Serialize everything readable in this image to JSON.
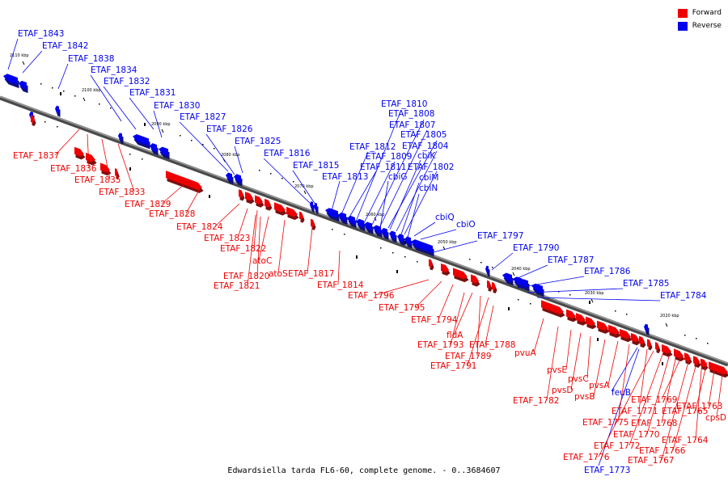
{
  "colors": {
    "forward": "#ee0000",
    "reverse": "#0000ee",
    "axis": "#6f6f6f",
    "shadow": "#7a1010",
    "shadowRev": "#10107a"
  },
  "legend": [
    {
      "key": "forward",
      "label": "Forward"
    },
    {
      "key": "reverse",
      "label": "Reverse"
    }
  ],
  "caption": "Edwardsiella tarda FL6-60, complete genome. - 0..3684607",
  "ticks": [
    "2110 kbp",
    "2100 kbp",
    "2090 kbp",
    "2080 kbp",
    "2070 kbp",
    "2060 kbp",
    "2050 kbp",
    "2040 kbp",
    "2030 kbp",
    "2020 kbp"
  ],
  "reverse_labels": [
    "ETAF_1843",
    "ETAF_1842",
    "ETAF_1838",
    "ETAF_1834",
    "ETAF_1832",
    "ETAF_1831",
    "ETAF_1830",
    "ETAF_1827",
    "ETAF_1826",
    "ETAF_1825",
    "ETAF_1816",
    "ETAF_1815",
    "ETAF_1813",
    "ETAF_1812",
    "ETAF_1811",
    "ETAF_1810",
    "ETAF_1809",
    "ETAF_1808",
    "ETAF_1807",
    "ETAF_1805",
    "ETAF_1804",
    "ETAF_1802",
    "cbiK",
    "cbiG",
    "cbiM",
    "cbiN",
    "cbiQ",
    "cbiO",
    "ETAF_1797",
    "ETAF_1790",
    "ETAF_1787",
    "ETAF_1786",
    "ETAF_1785",
    "ETAF_1784",
    "feuB",
    "ETAF_1773"
  ],
  "forward_labels": [
    "ETAF_1837",
    "ETAF_1836",
    "ETAF_1835",
    "ETAF_1833",
    "ETAF_1829",
    "ETAF_1828",
    "ETAF_1824",
    "ETAF_1823",
    "ETAF_1822",
    "atoC",
    "ETAF_1820",
    "ETAF_1821",
    "atoS",
    "ETAF_1817",
    "ETAF_1814",
    "ETAF_1796",
    "ETAF_1795",
    "ETAF_1794",
    "fldA",
    "ETAF_1793",
    "ETAF_1789",
    "ETAF_1791",
    "ETAF_1788",
    "pvuA",
    "ETAF_1782",
    "pvsE",
    "pvsD",
    "pvsC",
    "pvsB",
    "pvsA",
    "ETAF_1775",
    "ETAF_1771",
    "ETAF_1776",
    "ETAF_1772",
    "ETAF_1770",
    "ETAF_1768",
    "ETAF_1769",
    "ETAF_1767",
    "ETAF_1766",
    "ETAF_1764",
    "ETAF_1765",
    "ETAF_1763",
    "cpsD"
  ]
}
